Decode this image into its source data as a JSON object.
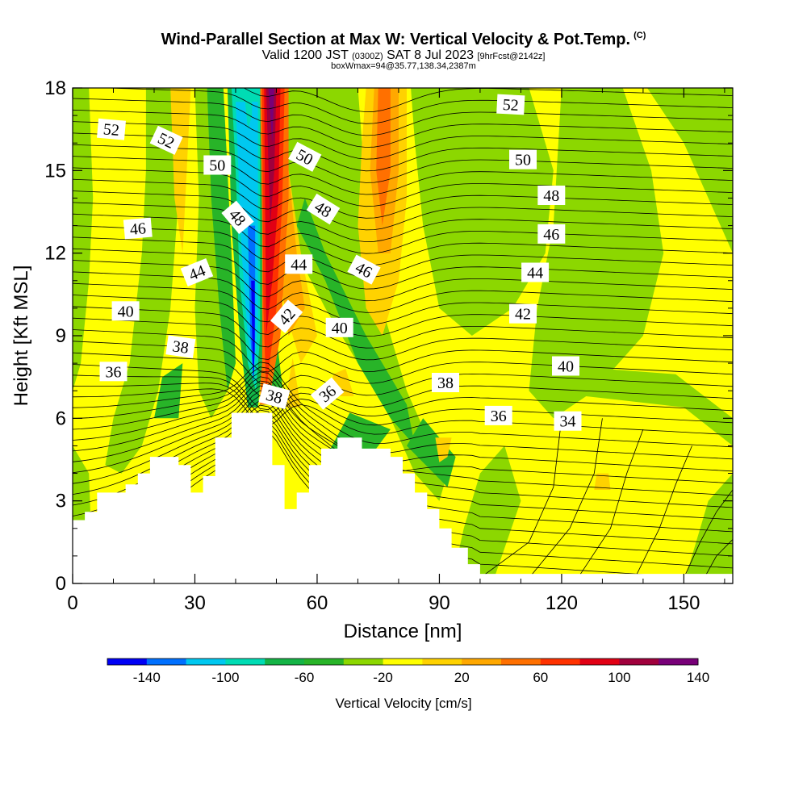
{
  "header": {
    "title": "Wind-Parallel Section at Max W: Vertical Velocity & Pot.Temp.",
    "copyright": "(C)",
    "valid_prefix": "Valid 1200 JST",
    "valid_utc": "(0300Z)",
    "valid_date": "SAT 8 Jul 2023",
    "forecast": "[9hrFcst@2142z]",
    "box_info": "boxWmax=94@35.77,138.34,2387m"
  },
  "colorbar": {
    "title": "Vertical Velocity [cm/s]",
    "colors": [
      "#0000f5",
      "#0070ff",
      "#00c8f0",
      "#00dcb4",
      "#14b446",
      "#28b428",
      "#8cd700",
      "#ffff00",
      "#ffd200",
      "#ffa800",
      "#ff7000",
      "#ff3200",
      "#e10014",
      "#a0003c",
      "#780078"
    ],
    "tick_labels": [
      "-140",
      "-100",
      "-60",
      "-20",
      "20",
      "60",
      "100",
      "140"
    ]
  },
  "chart_data": {
    "type": "filled contour cross-section",
    "xlabel": "Distance [nm]",
    "ylabel": "Height [Kft MSL]",
    "xlim": [
      0,
      162
    ],
    "ylim": [
      0,
      18
    ],
    "x_ticks": [
      "0",
      "30",
      "60",
      "90",
      "120",
      "150"
    ],
    "y_ticks": [
      "0",
      "3",
      "6",
      "9",
      "12",
      "15",
      "18"
    ],
    "vertical_velocity_features": [
      {
        "label": "strong updraft",
        "x_range": [
          46,
          52
        ],
        "y_range": [
          6.5,
          18
        ],
        "value_max": 140
      },
      {
        "label": "strong downdraft",
        "x_range": [
          40,
          46
        ],
        "y_range": [
          6.5,
          18
        ],
        "value_min": -140
      },
      {
        "label": "moderate updraft",
        "x_range": [
          72,
          82
        ],
        "y_range": [
          8,
          18
        ],
        "value_max": 60
      },
      {
        "label": "weak updraft",
        "x_range": [
          130,
          132
        ],
        "y_range": [
          3,
          4
        ],
        "value_max": 30
      }
    ],
    "terrain_profile": [
      [
        0,
        2.3
      ],
      [
        3,
        2.3
      ],
      [
        3,
        2.6
      ],
      [
        6,
        2.6
      ],
      [
        6,
        3.3
      ],
      [
        13,
        3.3
      ],
      [
        13,
        3.6
      ],
      [
        16,
        3.6
      ],
      [
        16,
        4.0
      ],
      [
        19,
        4.0
      ],
      [
        19,
        4.6
      ],
      [
        26,
        4.6
      ],
      [
        26,
        4.3
      ],
      [
        29,
        4.3
      ],
      [
        29,
        3.3
      ],
      [
        32,
        3.3
      ],
      [
        32,
        3.9
      ],
      [
        35,
        3.9
      ],
      [
        35,
        5.3
      ],
      [
        39,
        5.3
      ],
      [
        39,
        6.2
      ],
      [
        49,
        6.2
      ],
      [
        49,
        4.3
      ],
      [
        52,
        4.3
      ],
      [
        52,
        2.7
      ],
      [
        55,
        2.7
      ],
      [
        55,
        3.3
      ],
      [
        58,
        3.3
      ],
      [
        58,
        4.3
      ],
      [
        61,
        4.3
      ],
      [
        61,
        4.9
      ],
      [
        65,
        4.9
      ],
      [
        65,
        5.3
      ],
      [
        71,
        5.3
      ],
      [
        71,
        4.9
      ],
      [
        78,
        4.9
      ],
      [
        78,
        4.6
      ],
      [
        81,
        4.6
      ],
      [
        81,
        4.0
      ],
      [
        84,
        4.0
      ],
      [
        84,
        3.3
      ],
      [
        87,
        3.3
      ],
      [
        87,
        2.7
      ],
      [
        90,
        2.7
      ],
      [
        90,
        2.0
      ],
      [
        93,
        2.0
      ],
      [
        93,
        1.3
      ],
      [
        97,
        1.3
      ],
      [
        97,
        0.7
      ],
      [
        100,
        0.7
      ],
      [
        100,
        0.35
      ],
      [
        162,
        0.35
      ]
    ],
    "potential_temperature_labels": [
      {
        "text": "52",
        "x": 9.5,
        "y": 16.5,
        "rot": 5
      },
      {
        "text": "52",
        "x": 23,
        "y": 16.1,
        "rot": 25
      },
      {
        "text": "50",
        "x": 35.5,
        "y": 15.2,
        "rot": 0
      },
      {
        "text": "50",
        "x": 57,
        "y": 15.5,
        "rot": 28
      },
      {
        "text": "52",
        "x": 107.5,
        "y": 17.4,
        "rot": 3
      },
      {
        "text": "50",
        "x": 110.5,
        "y": 15.4,
        "rot": 0
      },
      {
        "text": "48",
        "x": 40.5,
        "y": 13.3,
        "rot": 50
      },
      {
        "text": "48",
        "x": 61.5,
        "y": 13.6,
        "rot": 32
      },
      {
        "text": "48",
        "x": 117.5,
        "y": 14.1,
        "rot": 0
      },
      {
        "text": "46",
        "x": 16,
        "y": 12.9,
        "rot": -5
      },
      {
        "text": "46",
        "x": 71.5,
        "y": 11.4,
        "rot": 28
      },
      {
        "text": "46",
        "x": 117.5,
        "y": 12.7,
        "rot": 0
      },
      {
        "text": "44",
        "x": 30.5,
        "y": 11.3,
        "rot": -22
      },
      {
        "text": "44",
        "x": 55.5,
        "y": 11.6,
        "rot": 0
      },
      {
        "text": "44",
        "x": 113.5,
        "y": 11.3,
        "rot": 0
      },
      {
        "text": "42",
        "x": 52.5,
        "y": 9.7,
        "rot": -50
      },
      {
        "text": "42",
        "x": 110.5,
        "y": 9.8,
        "rot": 0
      },
      {
        "text": "40",
        "x": 13,
        "y": 9.9,
        "rot": 0
      },
      {
        "text": "40",
        "x": 65.5,
        "y": 9.3,
        "rot": 0
      },
      {
        "text": "40",
        "x": 121,
        "y": 7.9,
        "rot": 0
      },
      {
        "text": "38",
        "x": 26.5,
        "y": 8.6,
        "rot": 8
      },
      {
        "text": "38",
        "x": 49.5,
        "y": 6.8,
        "rot": 15
      },
      {
        "text": "38",
        "x": 91.5,
        "y": 7.3,
        "rot": 0
      },
      {
        "text": "36",
        "x": 10,
        "y": 7.7,
        "rot": 0
      },
      {
        "text": "36",
        "x": 62.5,
        "y": 6.9,
        "rot": -40
      },
      {
        "text": "36",
        "x": 104.5,
        "y": 6.1,
        "rot": 0
      },
      {
        "text": "34",
        "x": 121.5,
        "y": 5.9,
        "rot": 0
      }
    ]
  }
}
